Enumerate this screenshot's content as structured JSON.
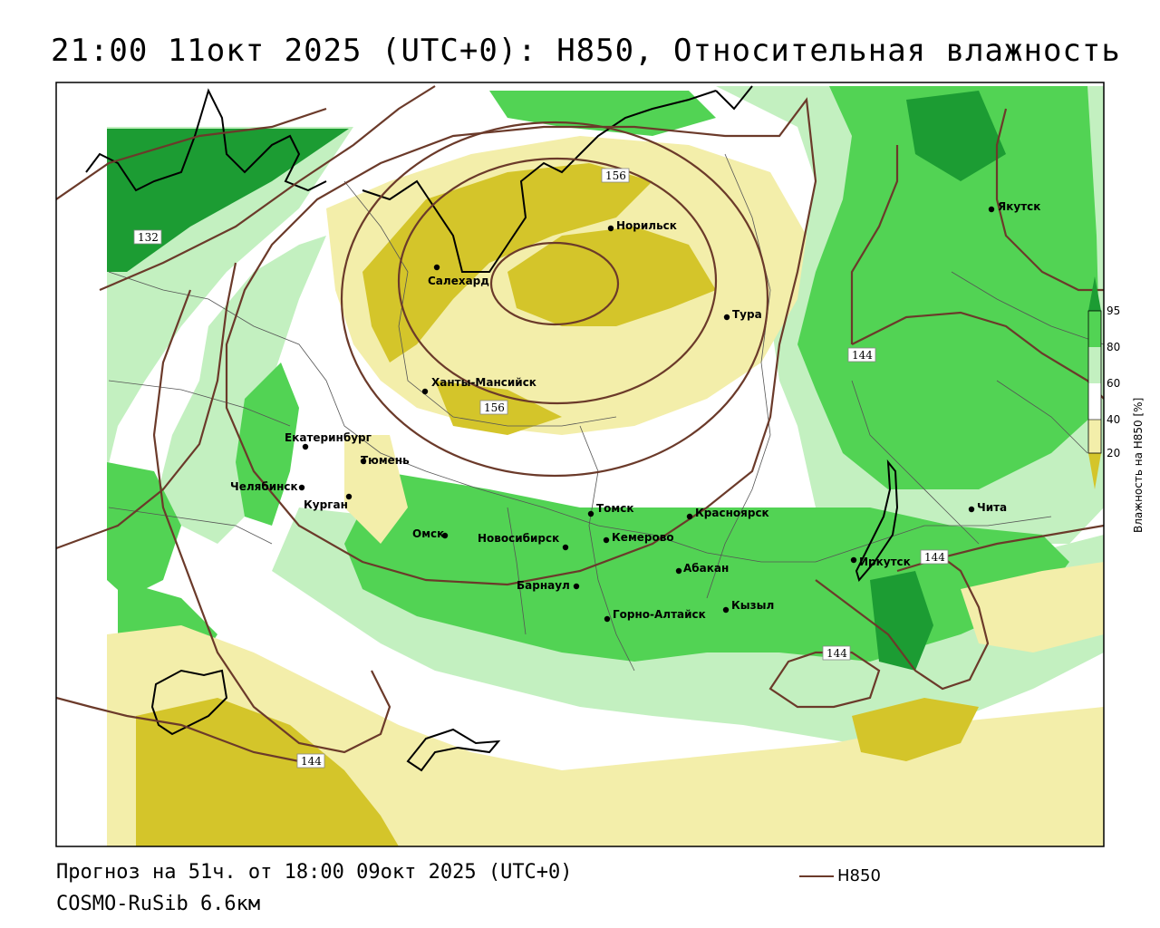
{
  "title": "21:00 11окт 2025 (UTC+0): H850, Относительная влажность",
  "footer": {
    "forecast": "Прогноз на 51ч. от 18:00 09окт 2025 (UTC+0)",
    "model": "COSMO-RuSib 6.6км"
  },
  "legend": {
    "line_label": "H850",
    "line_color": "#6b3a2a"
  },
  "colorbar": {
    "title": "Влажность на H850 [%]",
    "ticks": [
      "95",
      "80",
      "60",
      "40",
      "20"
    ],
    "colors": {
      "very_dry": "#d4c52a",
      "dry": "#f3eeaa",
      "neutral": "#ffffff",
      "moist": "#c3f0c0",
      "wet": "#52d354",
      "very_wet": "#1c9c33"
    }
  },
  "cities": [
    {
      "name": "Норильск"
    },
    {
      "name": "Якутск"
    },
    {
      "name": "Салехард"
    },
    {
      "name": "Тура"
    },
    {
      "name": "Ханты-Мансийск"
    },
    {
      "name": "Екатеринбург"
    },
    {
      "name": "Тюмень"
    },
    {
      "name": "Челябинск"
    },
    {
      "name": "Курган"
    },
    {
      "name": "Омск"
    },
    {
      "name": "Новосибирск"
    },
    {
      "name": "Томск"
    },
    {
      "name": "Красноярск"
    },
    {
      "name": "Кемерово"
    },
    {
      "name": "Абакан"
    },
    {
      "name": "Барнаул"
    },
    {
      "name": "Горно-Алтайск"
    },
    {
      "name": "Кызыл"
    },
    {
      "name": "Иркутск"
    },
    {
      "name": "Чита"
    }
  ],
  "isolines": [
    {
      "value": "132"
    },
    {
      "value": "156"
    },
    {
      "value": "156"
    },
    {
      "value": "144"
    },
    {
      "value": "144"
    },
    {
      "value": "144"
    },
    {
      "value": "144"
    }
  ]
}
